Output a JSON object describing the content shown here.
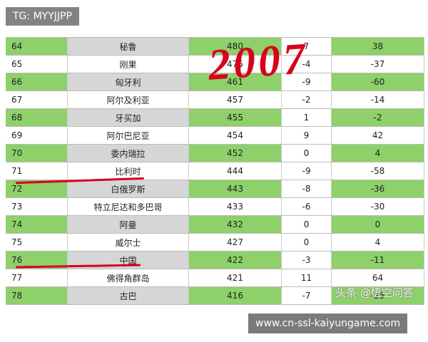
{
  "overlay": {
    "tag": "TG: MYYJJPP",
    "handwriting": "2007",
    "url": "www.cn-ssl-kaiyungame.com",
    "watermark": "头条 @悟空问答"
  },
  "table": {
    "rows": [
      [
        64,
        "秘鲁",
        480,
        7,
        38
      ],
      [
        65,
        "刚果",
        475,
        -4,
        -37
      ],
      [
        66,
        "匈牙利",
        461,
        -9,
        -60
      ],
      [
        67,
        "阿尔及利亚",
        457,
        -2,
        -14
      ],
      [
        68,
        "牙买加",
        455,
        1,
        -2
      ],
      [
        69,
        "阿尔巴尼亚",
        454,
        9,
        42
      ],
      [
        70,
        "委内瑞拉",
        452,
        0,
        4
      ],
      [
        71,
        "比利时",
        444,
        -9,
        -58
      ],
      [
        72,
        "白俄罗斯",
        443,
        -8,
        -36
      ],
      [
        73,
        "特立尼达和多巴哥",
        433,
        -6,
        -30
      ],
      [
        74,
        "阿曼",
        432,
        0,
        0
      ],
      [
        75,
        "威尔士",
        427,
        0,
        4
      ],
      [
        76,
        "中国",
        422,
        -3,
        -11
      ],
      [
        77,
        "佛得角群岛",
        421,
        11,
        64
      ],
      [
        78,
        "古巴",
        416,
        -7,
        -25
      ]
    ]
  }
}
